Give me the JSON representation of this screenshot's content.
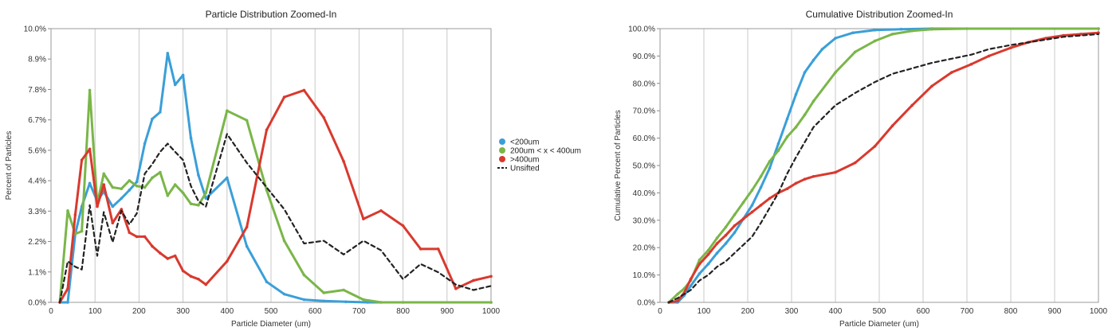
{
  "chart_data": [
    {
      "type": "line",
      "title": "Particle Distribution Zoomed-In",
      "xlabel": "Particle Diameter (um)",
      "ylabel": "Percent of Particles",
      "xlim": [
        0,
        1000
      ],
      "ylim": [
        0,
        10
      ],
      "xticks": [
        "0",
        "100",
        "200",
        "300",
        "400",
        "500",
        "600",
        "700",
        "800",
        "900",
        "1000"
      ],
      "yticks": [
        "0.0%",
        "1.1%",
        "2.2%",
        "3.3%",
        "4.4%",
        "5.6%",
        "6.7%",
        "7.8%",
        "8.9%",
        "10.0%"
      ],
      "grid": "vertical",
      "legend": "right",
      "series": [
        {
          "name": "<200um",
          "color": "#3a9fd8",
          "style": "solid",
          "points": [
            [
              20,
              0
            ],
            [
              38,
              0
            ],
            [
              55,
              2.5
            ],
            [
              70,
              3.5
            ],
            [
              88,
              4.35
            ],
            [
              105,
              3.7
            ],
            [
              120,
              4.05
            ],
            [
              140,
              3.5
            ],
            [
              160,
              3.8
            ],
            [
              178,
              4.1
            ],
            [
              195,
              4.4
            ],
            [
              213,
              5.8
            ],
            [
              230,
              6.7
            ],
            [
              248,
              6.95
            ],
            [
              265,
              9.1
            ],
            [
              282,
              7.95
            ],
            [
              300,
              8.3
            ],
            [
              318,
              6.0
            ],
            [
              335,
              4.65
            ],
            [
              352,
              3.8
            ],
            [
              400,
              4.55
            ],
            [
              445,
              2.05
            ],
            [
              490,
              0.75
            ],
            [
              530,
              0.3
            ],
            [
              575,
              0.1
            ],
            [
              620,
              0.05
            ],
            [
              670,
              0.02
            ],
            [
              720,
              0
            ],
            [
              800,
              0
            ],
            [
              1000,
              0
            ]
          ]
        },
        {
          "name": "200um < x < 400um",
          "color": "#7ab648",
          "style": "solid",
          "points": [
            [
              20,
              0
            ],
            [
              38,
              3.35
            ],
            [
              55,
              2.5
            ],
            [
              70,
              2.6
            ],
            [
              88,
              7.75
            ],
            [
              105,
              3.6
            ],
            [
              120,
              4.7
            ],
            [
              140,
              4.2
            ],
            [
              160,
              4.15
            ],
            [
              178,
              4.45
            ],
            [
              195,
              4.25
            ],
            [
              213,
              4.2
            ],
            [
              230,
              4.55
            ],
            [
              248,
              4.75
            ],
            [
              265,
              3.9
            ],
            [
              282,
              4.3
            ],
            [
              300,
              4.0
            ],
            [
              318,
              3.6
            ],
            [
              335,
              3.55
            ],
            [
              352,
              4.0
            ],
            [
              400,
              7.0
            ],
            [
              445,
              6.65
            ],
            [
              490,
              4.1
            ],
            [
              530,
              2.25
            ],
            [
              575,
              1.0
            ],
            [
              620,
              0.35
            ],
            [
              665,
              0.45
            ],
            [
              710,
              0.1
            ],
            [
              750,
              0
            ],
            [
              1000,
              0
            ]
          ]
        },
        {
          "name": ">400um",
          "color": "#d9392e",
          "style": "solid",
          "points": [
            [
              20,
              0
            ],
            [
              38,
              0.5
            ],
            [
              55,
              3.2
            ],
            [
              70,
              5.2
            ],
            [
              88,
              5.6
            ],
            [
              105,
              3.5
            ],
            [
              120,
              4.3
            ],
            [
              140,
              2.9
            ],
            [
              160,
              3.4
            ],
            [
              178,
              2.55
            ],
            [
              195,
              2.4
            ],
            [
              213,
              2.4
            ],
            [
              230,
              2.05
            ],
            [
              248,
              1.8
            ],
            [
              265,
              1.6
            ],
            [
              282,
              1.7
            ],
            [
              300,
              1.15
            ],
            [
              318,
              0.95
            ],
            [
              335,
              0.85
            ],
            [
              352,
              0.65
            ],
            [
              400,
              1.5
            ],
            [
              445,
              2.75
            ],
            [
              490,
              6.3
            ],
            [
              530,
              7.5
            ],
            [
              575,
              7.75
            ],
            [
              620,
              6.75
            ],
            [
              665,
              5.15
            ],
            [
              710,
              3.05
            ],
            [
              750,
              3.35
            ],
            [
              800,
              2.8
            ],
            [
              840,
              1.95
            ],
            [
              880,
              1.95
            ],
            [
              920,
              0.5
            ],
            [
              960,
              0.8
            ],
            [
              1000,
              0.95
            ]
          ]
        },
        {
          "name": "Unsifted",
          "color": "#222222",
          "style": "dashed",
          "points": [
            [
              20,
              0
            ],
            [
              38,
              1.5
            ],
            [
              55,
              1.3
            ],
            [
              70,
              1.2
            ],
            [
              88,
              3.55
            ],
            [
              105,
              1.7
            ],
            [
              120,
              3.3
            ],
            [
              140,
              2.2
            ],
            [
              160,
              3.35
            ],
            [
              178,
              2.85
            ],
            [
              195,
              3.25
            ],
            [
              213,
              4.7
            ],
            [
              230,
              5.05
            ],
            [
              248,
              5.5
            ],
            [
              265,
              5.8
            ],
            [
              282,
              5.5
            ],
            [
              300,
              5.2
            ],
            [
              318,
              4.25
            ],
            [
              335,
              3.7
            ],
            [
              352,
              3.5
            ],
            [
              400,
              6.15
            ],
            [
              445,
              5.1
            ],
            [
              490,
              4.2
            ],
            [
              530,
              3.4
            ],
            [
              575,
              2.15
            ],
            [
              620,
              2.25
            ],
            [
              665,
              1.75
            ],
            [
              710,
              2.25
            ],
            [
              750,
              1.9
            ],
            [
              800,
              0.85
            ],
            [
              840,
              1.4
            ],
            [
              880,
              1.1
            ],
            [
              920,
              0.65
            ],
            [
              960,
              0.45
            ],
            [
              1000,
              0.6
            ]
          ]
        }
      ]
    },
    {
      "type": "line",
      "title": "Cumulative Distribution Zoomed-In",
      "xlabel": "Particle Diameter (um)",
      "ylabel": "Cumulative Percent of Particles",
      "xlim": [
        0,
        1000
      ],
      "ylim": [
        0,
        100
      ],
      "xticks": [
        "0",
        "100",
        "200",
        "300",
        "400",
        "500",
        "600",
        "700",
        "800",
        "900",
        "1000"
      ],
      "yticks": [
        "0.0%",
        "10.0%",
        "20.0%",
        "30.0%",
        "40.0%",
        "50.0%",
        "60.0%",
        "70.0%",
        "80.0%",
        "90.0%",
        "100.0%"
      ],
      "grid": "vertical",
      "series": [
        {
          "name": "<200um",
          "color": "#3a9fd8",
          "style": "solid",
          "points": [
            [
              20,
              0
            ],
            [
              40,
              0
            ],
            [
              55,
              2.5
            ],
            [
              70,
              6
            ],
            [
              90,
              10.5
            ],
            [
              110,
              14
            ],
            [
              130,
              18
            ],
            [
              150,
              21.5
            ],
            [
              170,
              25.5
            ],
            [
              190,
              30.5
            ],
            [
              210,
              35.5
            ],
            [
              230,
              42
            ],
            [
              250,
              49
            ],
            [
              270,
              58
            ],
            [
              290,
              67
            ],
            [
              310,
              76
            ],
            [
              330,
              84
            ],
            [
              350,
              88.5
            ],
            [
              370,
              92.5
            ],
            [
              400,
              96.5
            ],
            [
              440,
              98.5
            ],
            [
              490,
              99.5
            ],
            [
              550,
              99.8
            ],
            [
              620,
              100
            ],
            [
              1000,
              100
            ]
          ]
        },
        {
          "name": "200um < x < 400um",
          "color": "#7ab648",
          "style": "solid",
          "points": [
            [
              20,
              0
            ],
            [
              40,
              3
            ],
            [
              55,
              5
            ],
            [
              70,
              8
            ],
            [
              90,
              15.5
            ],
            [
              110,
              19
            ],
            [
              130,
              23.5
            ],
            [
              150,
              27.5
            ],
            [
              170,
              32
            ],
            [
              190,
              36.5
            ],
            [
              210,
              41
            ],
            [
              230,
              46
            ],
            [
              250,
              51.5
            ],
            [
              270,
              55.5
            ],
            [
              290,
              60.5
            ],
            [
              310,
              64
            ],
            [
              330,
              68.5
            ],
            [
              350,
              73.5
            ],
            [
              400,
              84
            ],
            [
              445,
              91.5
            ],
            [
              490,
              95.5
            ],
            [
              530,
              98
            ],
            [
              575,
              99.2
            ],
            [
              620,
              99.8
            ],
            [
              700,
              100
            ],
            [
              1000,
              100
            ]
          ]
        },
        {
          "name": ">400um",
          "color": "#d9392e",
          "style": "solid",
          "points": [
            [
              20,
              0
            ],
            [
              40,
              0.5
            ],
            [
              55,
              3.5
            ],
            [
              70,
              8.5
            ],
            [
              90,
              14
            ],
            [
              110,
              17.5
            ],
            [
              130,
              21.5
            ],
            [
              150,
              24.5
            ],
            [
              170,
              28
            ],
            [
              190,
              30.5
            ],
            [
              210,
              33
            ],
            [
              230,
              35.5
            ],
            [
              250,
              38
            ],
            [
              270,
              40
            ],
            [
              290,
              41.5
            ],
            [
              310,
              43.5
            ],
            [
              330,
              45
            ],
            [
              350,
              46
            ],
            [
              400,
              47.5
            ],
            [
              445,
              51
            ],
            [
              490,
              57
            ],
            [
              530,
              64.5
            ],
            [
              575,
              72
            ],
            [
              620,
              79
            ],
            [
              665,
              84
            ],
            [
              710,
              87
            ],
            [
              750,
              90
            ],
            [
              800,
              93
            ],
            [
              840,
              95
            ],
            [
              880,
              96.5
            ],
            [
              920,
              97.5
            ],
            [
              960,
              98
            ],
            [
              1000,
              98.5
            ]
          ]
        },
        {
          "name": "Unsifted",
          "color": "#222222",
          "style": "dashed",
          "points": [
            [
              20,
              0
            ],
            [
              40,
              1.5
            ],
            [
              55,
              3
            ],
            [
              70,
              4.5
            ],
            [
              90,
              8
            ],
            [
              110,
              10
            ],
            [
              130,
              13
            ],
            [
              150,
              15
            ],
            [
              170,
              18
            ],
            [
              190,
              21
            ],
            [
              210,
              24
            ],
            [
              230,
              29
            ],
            [
              250,
              34.5
            ],
            [
              270,
              40
            ],
            [
              290,
              47
            ],
            [
              310,
              53
            ],
            [
              330,
              58.5
            ],
            [
              350,
              64
            ],
            [
              400,
              72
            ],
            [
              445,
              76.5
            ],
            [
              490,
              80.5
            ],
            [
              530,
              83.5
            ],
            [
              575,
              85.5
            ],
            [
              620,
              87.5
            ],
            [
              665,
              89
            ],
            [
              710,
              90.5
            ],
            [
              750,
              92.5
            ],
            [
              800,
              94
            ],
            [
              840,
              95
            ],
            [
              880,
              96
            ],
            [
              920,
              97
            ],
            [
              960,
              97.5
            ],
            [
              1000,
              98
            ]
          ]
        }
      ]
    }
  ]
}
